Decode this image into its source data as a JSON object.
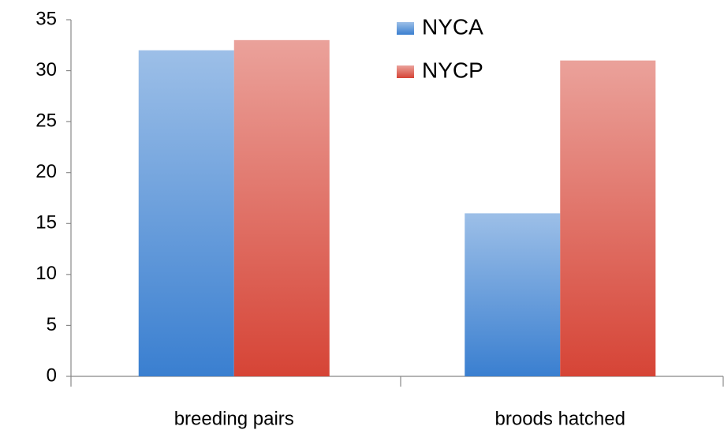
{
  "chart_data": {
    "type": "bar",
    "categories": [
      "breeding pairs",
      "broods hatched"
    ],
    "series": [
      {
        "name": "NYCA",
        "color": "#3a7fd0",
        "values": [
          32,
          16
        ]
      },
      {
        "name": "NYCP",
        "color": "#d64436",
        "values": [
          33,
          31
        ]
      }
    ],
    "ylim": [
      0,
      35
    ],
    "yticks": [
      0,
      5,
      10,
      15,
      20,
      25,
      30,
      35
    ],
    "legend": "top"
  }
}
